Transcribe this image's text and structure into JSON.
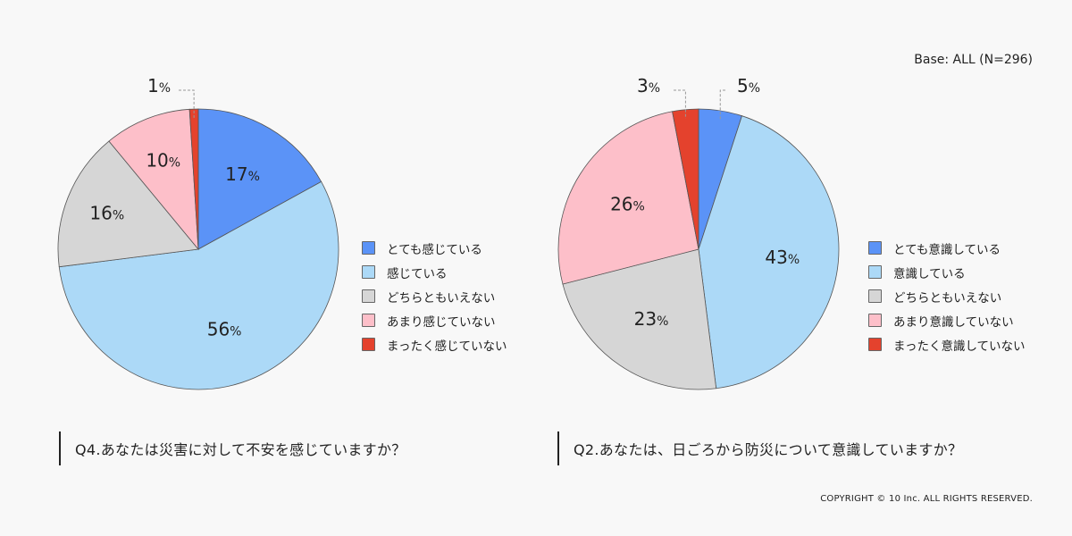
{
  "header": {
    "base_note": "Base: ALL (N=296)"
  },
  "footer": {
    "copyright": "COPYRIGHT © 10 Inc. ALL RIGHTS RESERVED."
  },
  "colors": {
    "very": "#5b93f7",
    "somewhat": "#acd9f7",
    "neutral": "#d6d6d6",
    "not_much": "#fdbfc9",
    "not_at_all": "#e4422d",
    "stroke": "#555555",
    "leader": "#999999"
  },
  "chart_data": [
    {
      "type": "pie",
      "title": "Q4.あなたは災害に対して不安を感じていますか？",
      "categories": [
        "とても感じている",
        "感じている",
        "どちらともいえない",
        "あまり感じていない",
        "まったく感じていない"
      ],
      "values": [
        17,
        56,
        16,
        10,
        1
      ],
      "labels": [
        "17%",
        "56%",
        "16%",
        "10%",
        "1%"
      ],
      "start_angle": "12 o'clock, clockwise",
      "legend_position": "right"
    },
    {
      "type": "pie",
      "title": "Q2.あなたは、日ごろから防災について意識していますか？",
      "categories": [
        "とても意識している",
        "意識している",
        "どちらともいえない",
        "あまり意識していない",
        "まったく意識していない"
      ],
      "values": [
        5,
        43,
        23,
        26,
        3
      ],
      "labels": [
        "5%",
        "43%",
        "23%",
        "26%",
        "3%"
      ],
      "start_angle": "12 o'clock, clockwise",
      "legend_position": "right"
    }
  ],
  "left": {
    "question": "Q4.あなたは災害に対して不安を感じていますか？",
    "legend": [
      {
        "label": "とても感じている"
      },
      {
        "label": "感じている"
      },
      {
        "label": "どちらともいえない"
      },
      {
        "label": "あまり感じていない"
      },
      {
        "label": "まったく感じていない"
      }
    ]
  },
  "right": {
    "question": "Q2.あなたは、日ごろから防災について意識していますか？",
    "legend": [
      {
        "label": "とても意識している"
      },
      {
        "label": "意識している"
      },
      {
        "label": "どちらともいえない"
      },
      {
        "label": "あまり意識していない"
      },
      {
        "label": "まったく意識していない"
      }
    ]
  }
}
